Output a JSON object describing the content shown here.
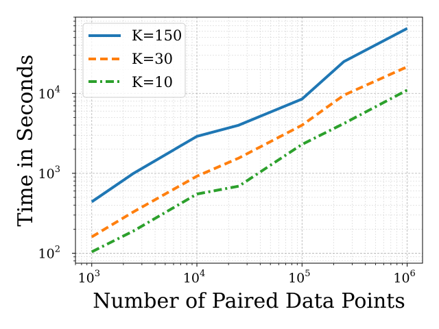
{
  "chart_data": {
    "type": "line",
    "title": "",
    "xlabel": "Number of Paired Data Points",
    "ylabel": "Time in Seconds",
    "xscale": "log",
    "yscale": "log",
    "xlim": [
      700,
      1400000
    ],
    "ylim": [
      75,
      90000
    ],
    "grid": true,
    "legend_position": "top-left",
    "x": [
      1000,
      2500,
      10000,
      25000,
      100000,
      250000,
      1000000
    ],
    "x_ticks": [
      {
        "value": 1000,
        "base": "10",
        "exp": "3"
      },
      {
        "value": 10000,
        "base": "10",
        "exp": "4"
      },
      {
        "value": 100000,
        "base": "10",
        "exp": "5"
      },
      {
        "value": 1000000,
        "base": "10",
        "exp": "6"
      }
    ],
    "y_ticks": [
      {
        "value": 100,
        "base": "10",
        "exp": "2"
      },
      {
        "value": 1000,
        "base": "10",
        "exp": "3"
      },
      {
        "value": 10000,
        "base": "10",
        "exp": "4"
      }
    ],
    "series": [
      {
        "name": "K=150",
        "color": "#1f77b4",
        "dash": "solid",
        "values": [
          440,
          1000,
          2900,
          4000,
          8500,
          25000,
          65000
        ]
      },
      {
        "name": "K=30",
        "color": "#ff7f0e",
        "dash": "dashed",
        "values": [
          160,
          330,
          920,
          1550,
          4000,
          9500,
          21500
        ]
      },
      {
        "name": "K=10",
        "color": "#2ca02c",
        "dash": "dashdot",
        "values": [
          104,
          190,
          550,
          690,
          2300,
          4200,
          11000
        ]
      }
    ]
  }
}
